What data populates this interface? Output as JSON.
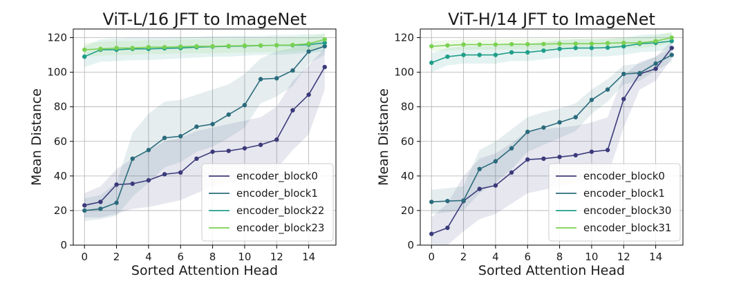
{
  "chart_data": [
    {
      "type": "line",
      "title": "ViT-L/16 JFT to ImageNet",
      "xlabel": "Sorted Attention Head",
      "ylabel": "Mean Distance",
      "xlim": [
        -0.7,
        15.7
      ],
      "ylim": [
        0,
        125
      ],
      "xticks": [
        0,
        2,
        4,
        6,
        8,
        10,
        12,
        14
      ],
      "yticks": [
        0,
        20,
        40,
        60,
        80,
        100,
        120
      ],
      "grid": true,
      "legend_position": "lower-right",
      "x": [
        0,
        1,
        2,
        3,
        4,
        5,
        6,
        7,
        8,
        9,
        10,
        11,
        12,
        13,
        14,
        15
      ],
      "series": [
        {
          "name": "encoder_block0",
          "color": "#3b3a7a",
          "values": [
            23,
            25,
            35,
            35.5,
            37.5,
            41,
            42,
            50,
            54,
            54.5,
            56,
            58,
            61,
            78,
            87,
            103
          ],
          "lower": [
            16,
            16,
            18,
            21,
            22,
            24,
            26,
            30,
            34,
            36,
            38,
            40,
            44,
            55,
            64,
            90
          ],
          "upper": [
            30,
            34,
            44,
            50,
            55,
            60,
            62,
            66,
            68,
            70,
            72,
            74,
            80,
            95,
            104,
            114
          ]
        },
        {
          "name": "encoder_block1",
          "color": "#2a6b7c",
          "values": [
            20,
            21,
            24.5,
            50,
            55,
            62,
            63,
            68.5,
            70,
            75.5,
            81,
            96,
            96.5,
            101,
            112,
            115
          ],
          "lower": [
            14,
            15,
            17,
            28,
            36,
            45,
            48,
            54,
            57,
            62,
            68,
            82,
            86,
            92,
            105,
            110
          ],
          "upper": [
            27,
            29,
            36,
            65,
            76,
            83,
            84,
            87,
            90,
            93,
            99,
            108,
            112,
            114,
            117,
            119
          ]
        },
        {
          "name": "encoder_block22",
          "color": "#1f9e89",
          "values": [
            109,
            113,
            113,
            113.5,
            113.5,
            113.8,
            114,
            114.5,
            114.8,
            115,
            115.2,
            115.4,
            115.6,
            115.6,
            116,
            117
          ],
          "lower": [
            103,
            106,
            106.5,
            107,
            107,
            107.5,
            108,
            108.5,
            109,
            109,
            109.5,
            110,
            110,
            110.5,
            111,
            112
          ],
          "upper": [
            115,
            119,
            119.5,
            120,
            120,
            120,
            120.5,
            120.5,
            121,
            121,
            121,
            121,
            121.5,
            121.5,
            122,
            122
          ]
        },
        {
          "name": "encoder_block23",
          "color": "#7ad151",
          "values": [
            113,
            113.5,
            114,
            114,
            114.5,
            114.5,
            114.8,
            115,
            115,
            115.2,
            115.4,
            115.5,
            115.6,
            115.8,
            116.5,
            119
          ],
          "lower": [
            109,
            109.5,
            110,
            110,
            110.5,
            110.5,
            110.8,
            111,
            111,
            111.2,
            111.4,
            111.5,
            111.6,
            111.8,
            112.5,
            115
          ],
          "upper": [
            117,
            117.5,
            118,
            118,
            118.5,
            118.5,
            118.8,
            119,
            119,
            119.2,
            119.4,
            119.5,
            119.6,
            119.8,
            120.5,
            122.5
          ]
        }
      ]
    },
    {
      "type": "line",
      "title": "ViT-H/14 JFT to ImageNet",
      "xlabel": "Sorted Attention Head",
      "ylabel": "Mean Distance",
      "xlim": [
        -0.7,
        15.7
      ],
      "ylim": [
        0,
        125
      ],
      "xticks": [
        0,
        2,
        4,
        6,
        8,
        10,
        12,
        14
      ],
      "yticks": [
        0,
        20,
        40,
        60,
        80,
        100,
        120
      ],
      "grid": true,
      "legend_position": "lower-right",
      "x": [
        0,
        1,
        2,
        3,
        4,
        5,
        6,
        7,
        8,
        9,
        10,
        11,
        12,
        13,
        14,
        15
      ],
      "series": [
        {
          "name": "encoder_block0",
          "color": "#3b3a7a",
          "values": [
            6.5,
            10,
            25.5,
            32.5,
            34.5,
            42,
            49.5,
            50,
            51,
            52,
            54,
            55,
            84.5,
            99,
            102,
            114
          ],
          "lower": [
            0,
            0,
            8,
            15,
            18,
            24,
            30,
            32,
            34,
            36,
            38,
            40,
            68,
            90,
            95,
            108
          ],
          "upper": [
            16,
            24,
            40,
            50,
            53,
            59,
            66,
            67,
            68,
            69,
            71,
            74,
            98,
            106,
            109,
            118
          ]
        },
        {
          "name": "encoder_block1",
          "color": "#2a6b7c",
          "values": [
            25,
            25.5,
            25.8,
            44,
            48.5,
            56,
            65.5,
            68,
            71,
            74,
            84,
            90,
            99,
            99.5,
            105,
            110
          ],
          "lower": [
            18,
            19,
            20,
            30,
            36,
            44,
            54,
            58,
            62,
            66,
            76,
            83,
            93,
            95,
            101,
            106
          ],
          "upper": [
            32,
            33,
            34,
            55,
            60,
            67,
            74,
            77,
            79,
            82,
            90,
            96,
            104,
            105,
            109,
            114
          ]
        },
        {
          "name": "encoder_block30",
          "color": "#1f9e89",
          "values": [
            105.5,
            109,
            110,
            110,
            110,
            111.5,
            111.5,
            112.5,
            113.5,
            114,
            114,
            114.2,
            115,
            116.5,
            117,
            118
          ],
          "lower": [
            100,
            104,
            105,
            105,
            105,
            106.5,
            106.5,
            107.5,
            108.5,
            109,
            109,
            109.2,
            110,
            111.5,
            112,
            113
          ],
          "upper": [
            111,
            114,
            115,
            115,
            115,
            116.5,
            116.5,
            117.5,
            118.5,
            119,
            119,
            119.2,
            120,
            121.5,
            122,
            123
          ]
        },
        {
          "name": "encoder_block31",
          "color": "#7ad151",
          "values": [
            115,
            115.5,
            116,
            116,
            116,
            116.2,
            116.2,
            116.3,
            116.5,
            116.5,
            116.5,
            116.8,
            117,
            117,
            118,
            120
          ],
          "lower": [
            112,
            112.5,
            113,
            113,
            113,
            113.2,
            113.2,
            113.3,
            113.5,
            113.5,
            113.5,
            113.8,
            114,
            114,
            115,
            117
          ],
          "upper": [
            118,
            118.5,
            119,
            119,
            119,
            119.2,
            119.2,
            119.3,
            119.5,
            119.5,
            119.5,
            119.8,
            120,
            120,
            121,
            123
          ]
        }
      ]
    }
  ]
}
